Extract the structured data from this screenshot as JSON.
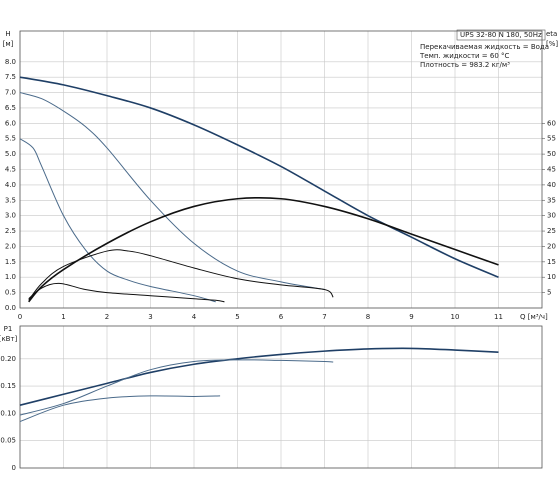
{
  "chart_data": [
    {
      "type": "line",
      "title": "UPS 32-80 N 180, 50Hz",
      "annotations": [
        "Перекачиваемая жидкость = Вода",
        "Темп. жидкости = 60 °C",
        "Плотность = 983.2 кг/м³"
      ],
      "x_label": "Q [м³/ч]",
      "y_label": [
        "H",
        "[м]"
      ],
      "y2_label": [
        "eta",
        "[%]"
      ],
      "xlim": [
        0,
        12
      ],
      "xticks": [
        0,
        1,
        2,
        3,
        4,
        5,
        6,
        7,
        8,
        9,
        10,
        11
      ],
      "ylim": [
        0,
        9
      ],
      "yticks": [
        {
          "value": 0,
          "label": "0.0"
        },
        0.5,
        {
          "value": 1,
          "label": "1.0"
        },
        1.5,
        {
          "value": 2,
          "label": "2.0"
        },
        2.5,
        {
          "value": 3,
          "label": "3.0"
        },
        3.5,
        {
          "value": 4,
          "label": "4.0"
        },
        4.5,
        {
          "value": 5,
          "label": "5.0"
        },
        5.5,
        {
          "value": 6,
          "label": "6.0"
        },
        6.5,
        {
          "value": 7,
          "label": "7.0"
        },
        7.5,
        {
          "value": 8,
          "label": "8.0"
        }
      ],
      "y2lim": [
        0,
        90
      ],
      "y2ticks": [
        5,
        10,
        15,
        20,
        25,
        30,
        35,
        40,
        45,
        50,
        55,
        60
      ],
      "grid": true,
      "series": [
        {
          "color": "#1f3f66",
          "linewidth": 1.6,
          "x": [
            0,
            1,
            2,
            3,
            4,
            5,
            6,
            7,
            8,
            9,
            10,
            11
          ],
          "values": [
            7.5,
            7.25,
            6.9,
            6.5,
            5.95,
            5.3,
            4.6,
            3.8,
            3.0,
            2.3,
            1.6,
            1.0
          ]
        },
        {
          "color": "#4a6a8a",
          "linewidth": 1,
          "x": [
            0,
            0.5,
            1,
            1.5,
            2,
            3,
            4,
            5,
            6,
            7
          ],
          "values": [
            7.0,
            6.8,
            6.4,
            5.9,
            5.2,
            3.5,
            2.1,
            1.2,
            0.85,
            0.6
          ]
        },
        {
          "color": "#4a6a8a",
          "linewidth": 1,
          "x": [
            0,
            0.3,
            0.5,
            1,
            1.5,
            2,
            2.5,
            3,
            4,
            4.5
          ],
          "values": [
            5.5,
            5.2,
            4.6,
            3.0,
            1.9,
            1.2,
            0.9,
            0.7,
            0.4,
            0.2
          ]
        },
        {
          "color": "#111111",
          "linewidth": 1.6,
          "axis": "y2",
          "x": [
            0.2,
            0.5,
            1,
            2,
            3,
            4,
            5,
            6,
            7,
            8,
            9,
            10,
            11
          ],
          "values": [
            2,
            7,
            12.5,
            21,
            28,
            33,
            35.5,
            35.5,
            33,
            29,
            24,
            19,
            14
          ]
        },
        {
          "color": "#111111",
          "linewidth": 1,
          "axis": "y2",
          "x": [
            0.2,
            0.5,
            1,
            2,
            2.5,
            3,
            4,
            5,
            6,
            7,
            7.2
          ],
          "values": [
            2.5,
            8,
            13.5,
            18.5,
            18.5,
            17,
            13,
            9.5,
            7.5,
            6,
            3.5
          ]
        },
        {
          "color": "#111111",
          "linewidth": 1,
          "axis": "y2",
          "x": [
            0.2,
            0.5,
            0.9,
            1.5,
            2,
            3,
            4,
            4.5,
            4.7
          ],
          "values": [
            3,
            6.5,
            8,
            6,
            5,
            4,
            3,
            2.5,
            2
          ]
        }
      ]
    },
    {
      "type": "line",
      "y_label": [
        "P1",
        "[кВт]"
      ],
      "xlim": [
        0,
        12
      ],
      "xticks": [
        0,
        1,
        2,
        3,
        4,
        5,
        6,
        7,
        8,
        9,
        10,
        11
      ],
      "ylim": [
        0,
        0.26
      ],
      "yticks": [
        0,
        0.05,
        {
          "value": 0.1,
          "label": "0.10"
        },
        0.15,
        {
          "value": 0.2,
          "label": "0.20"
        }
      ],
      "grid": true,
      "series": [
        {
          "color": "#1f3f66",
          "linewidth": 1.6,
          "x": [
            0,
            1,
            2,
            3,
            4,
            5,
            6,
            7,
            8,
            9,
            10,
            11
          ],
          "values": [
            0.115,
            0.135,
            0.155,
            0.175,
            0.19,
            0.2,
            0.208,
            0.214,
            0.218,
            0.219,
            0.216,
            0.212
          ]
        },
        {
          "color": "#4a6a8a",
          "linewidth": 1,
          "x": [
            0,
            1,
            2,
            3,
            4,
            5,
            6,
            7,
            7.2
          ],
          "values": [
            0.097,
            0.118,
            0.15,
            0.18,
            0.195,
            0.198,
            0.197,
            0.195,
            0.194
          ]
        },
        {
          "color": "#4a6a8a",
          "linewidth": 1,
          "x": [
            0,
            1,
            2,
            3,
            4,
            4.6
          ],
          "values": [
            0.085,
            0.115,
            0.128,
            0.132,
            0.131,
            0.132
          ]
        }
      ]
    }
  ]
}
